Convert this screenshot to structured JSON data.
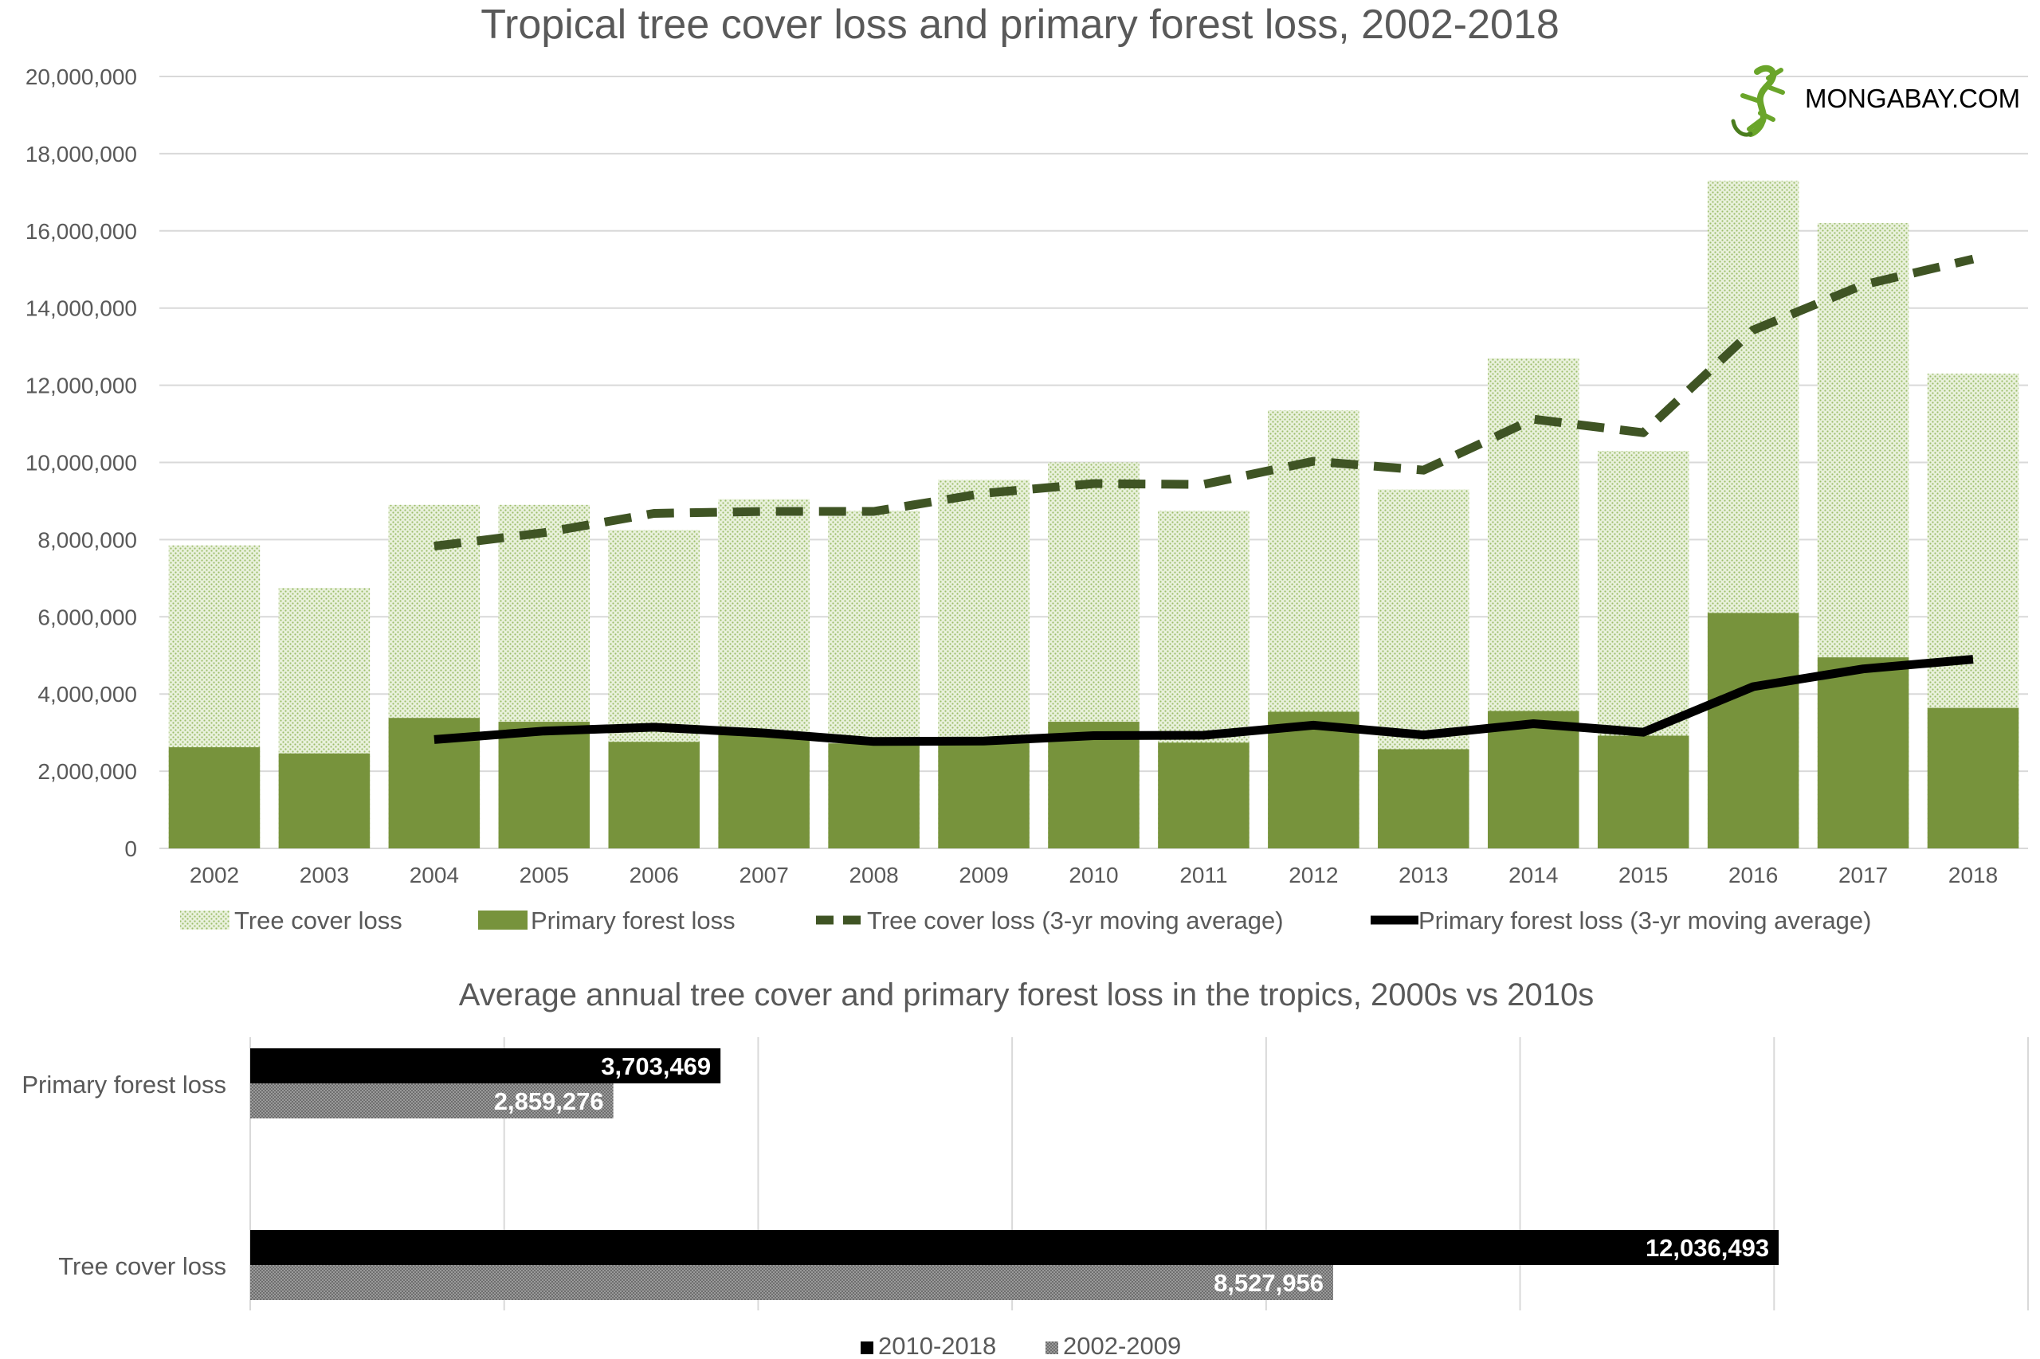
{
  "logo": {
    "text": "MONGABAY.COM"
  },
  "colors": {
    "tree_cover": "#c4dba0",
    "primary": "#77933c",
    "moving_avg_tree": "#3f5424",
    "moving_avg_primary": "#000000",
    "bar_2010": "#000000",
    "bar_2002": "#8c8c8c"
  },
  "chart_data": [
    {
      "type": "bar",
      "title": "Tropical tree cover loss and primary forest loss, 2002-2018",
      "categories": [
        "2002",
        "2003",
        "2004",
        "2005",
        "2006",
        "2007",
        "2008",
        "2009",
        "2010",
        "2011",
        "2012",
        "2013",
        "2014",
        "2015",
        "2016",
        "2017",
        "2018"
      ],
      "yticks": [
        "0",
        "2,000,000",
        "4,000,000",
        "6,000,000",
        "8,000,000",
        "10,000,000",
        "12,000,000",
        "14,000,000",
        "16,000,000",
        "18,000,000",
        "20,000,000"
      ],
      "ylim": [
        0,
        20000000
      ],
      "series": [
        {
          "name": "Tree cover loss",
          "kind": "bar",
          "values": [
            7850000,
            6750000,
            8900000,
            8900000,
            8250000,
            9050000,
            8750000,
            9550000,
            10000000,
            8750000,
            11350000,
            9300000,
            12700000,
            10300000,
            17300000,
            16200000,
            12300000
          ]
        },
        {
          "name": "Primary forest loss",
          "kind": "bar",
          "values": [
            2620000,
            2460000,
            3380000,
            3280000,
            2760000,
            2940000,
            2720000,
            2800000,
            3280000,
            2740000,
            3540000,
            2570000,
            3560000,
            2920000,
            6100000,
            4950000,
            3640000
          ]
        },
        {
          "name": "Tree cover loss (3-yr moving average)",
          "kind": "line-dashed",
          "values": [
            null,
            null,
            7830000,
            8180000,
            8680000,
            8730000,
            8730000,
            9200000,
            9450000,
            9430000,
            10030000,
            9800000,
            11120000,
            10770000,
            13430000,
            14600000,
            15270000
          ]
        },
        {
          "name": "Primary forest loss (3-yr moving average)",
          "kind": "line",
          "values": [
            null,
            null,
            2820000,
            3040000,
            3140000,
            2990000,
            2770000,
            2780000,
            2920000,
            2930000,
            3190000,
            2940000,
            3230000,
            3010000,
            4190000,
            4650000,
            4900000
          ]
        }
      ],
      "legend_position": "bottom",
      "grid": true
    },
    {
      "type": "bar",
      "orientation": "horizontal",
      "title": "Average annual tree cover and primary forest loss in the tropics, 2000s vs 2010s",
      "categories": [
        "Primary forest loss",
        "Tree cover loss"
      ],
      "series": [
        {
          "name": "2010-2018",
          "values": [
            3703469,
            12036493
          ],
          "labels": [
            "3,703,469",
            "12,036,493"
          ]
        },
        {
          "name": "2002-2009",
          "values": [
            2859276,
            8527956
          ],
          "labels": [
            "2,859,276",
            "8,527,956"
          ]
        }
      ],
      "xlim": [
        0,
        14000000
      ],
      "legend_position": "bottom",
      "grid": true
    }
  ]
}
